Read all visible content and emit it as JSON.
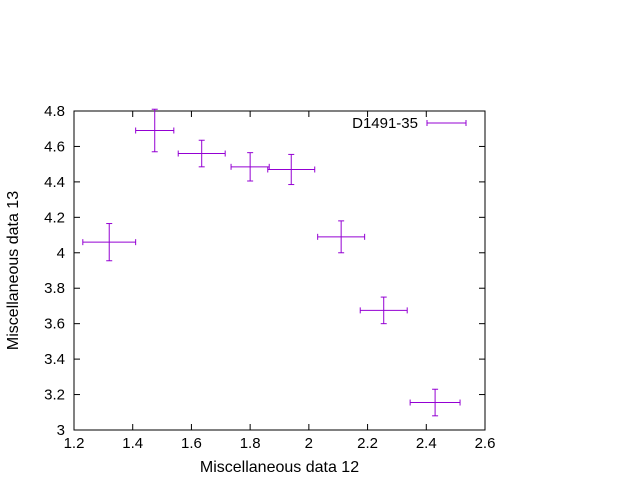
{
  "chart_data": {
    "type": "scatter",
    "xlabel": "Miscellaneous data 12",
    "ylabel": "Miscellaneous data 13",
    "xlim": [
      1.2,
      2.6
    ],
    "ylim": [
      3.0,
      4.8
    ],
    "xticks": [
      1.2,
      1.4,
      1.6,
      1.8,
      2.0,
      2.2,
      2.4,
      2.6
    ],
    "yticks": [
      3.0,
      3.2,
      3.4,
      3.6,
      3.8,
      4.0,
      4.2,
      4.4,
      4.6,
      4.8
    ],
    "xtick_labels": [
      "1.2",
      "1.4",
      "1.6",
      "1.8",
      "2",
      "2.2",
      "2.4",
      "2.6"
    ],
    "ytick_labels": [
      "3",
      "3.2",
      "3.4",
      "3.6",
      "3.8",
      "4",
      "4.2",
      "4.4",
      "4.6",
      "4.8"
    ],
    "grid": false,
    "legend_position": "top-right",
    "series": [
      {
        "name": "D1491-35",
        "color": "#9400d3",
        "style": "xyerrorbars",
        "points": [
          {
            "x": 1.32,
            "y": 4.06,
            "xerr": 0.09,
            "yerr": 0.105
          },
          {
            "x": 1.475,
            "y": 4.69,
            "xerr": 0.065,
            "yerr": 0.12
          },
          {
            "x": 1.635,
            "y": 4.56,
            "xerr": 0.08,
            "yerr": 0.075
          },
          {
            "x": 1.8,
            "y": 4.485,
            "xerr": 0.065,
            "yerr": 0.08
          },
          {
            "x": 1.94,
            "y": 4.47,
            "xerr": 0.08,
            "yerr": 0.085
          },
          {
            "x": 2.11,
            "y": 4.09,
            "xerr": 0.08,
            "yerr": 0.09
          },
          {
            "x": 2.255,
            "y": 3.675,
            "xerr": 0.08,
            "yerr": 0.075
          },
          {
            "x": 2.43,
            "y": 3.155,
            "xerr": 0.085,
            "yerr": 0.075
          }
        ]
      }
    ]
  }
}
